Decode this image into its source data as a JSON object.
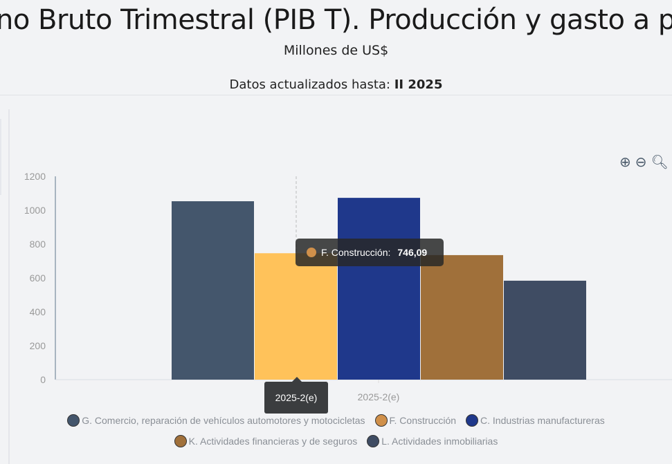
{
  "header": {
    "title": "no Bruto Trimestral (PIB T). Producción y gasto a pre",
    "subtitle": "Millones de US$",
    "updated_label": "Datos actualizados hasta:",
    "updated_value": "II 2025"
  },
  "toolbar": {
    "zoom_in": "zoom-in-icon",
    "zoom_out": "zoom-out-icon",
    "zoom_reset": "magnifier-icon"
  },
  "chart_data": {
    "type": "bar",
    "categories": [
      "2025-2(e)"
    ],
    "series": [
      {
        "name": "G. Comercio, reparación de vehículos automotores y motocicletas",
        "values": [
          1053
        ],
        "color": "#44566c",
        "legend_color": "#44566c"
      },
      {
        "name": "F. Construcción",
        "values": [
          746.09
        ],
        "color": "#ffc25a",
        "legend_color": "#d0904a"
      },
      {
        "name": "C. Industrias manufactureras",
        "values": [
          1073
        ],
        "color": "#1f388b",
        "legend_color": "#1f388b"
      },
      {
        "name": "K. Actividades financieras y de seguros",
        "values": [
          735
        ],
        "color": "#a0703a",
        "legend_color": "#a0703a"
      },
      {
        "name": "L. Actividades inmobiliarias",
        "values": [
          584
        ],
        "color": "#3f4c63",
        "legend_color": "#3f4c63"
      }
    ],
    "ylim": [
      0,
      1200
    ],
    "yticks": [
      "0",
      "200",
      "400",
      "600",
      "800",
      "1000",
      "1200"
    ],
    "legend": "bottom",
    "grid": false
  },
  "tooltip": {
    "label": "F. Construcción:",
    "value": "746,09",
    "category": "2025-2(e)"
  }
}
